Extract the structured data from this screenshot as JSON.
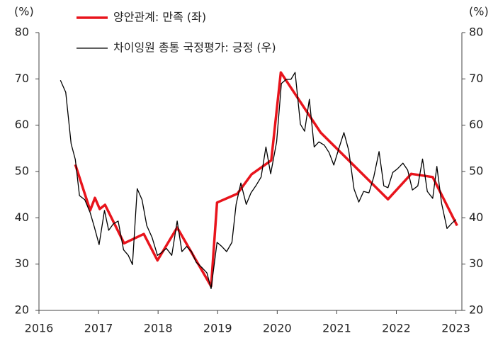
{
  "chart_data": {
    "type": "line",
    "y_unit_label": "(%)",
    "y2_unit_label": "(%)",
    "xlim": [
      2016,
      2023.1
    ],
    "xticks": [
      2016,
      2017,
      2018,
      2019,
      2020,
      2021,
      2022,
      2023
    ],
    "ylim": [
      20,
      80
    ],
    "yticks": [
      20,
      30,
      40,
      50,
      60,
      70,
      80
    ],
    "y2lim": [
      20,
      80
    ],
    "y2ticks": [
      20,
      30,
      40,
      50,
      60,
      70,
      80
    ],
    "series": [
      {
        "name": "양안관계: 만족 (좌)",
        "color": "#e8141c",
        "axis": "y",
        "x": [
          2016.61,
          2016.86,
          2016.94,
          2017.02,
          2017.11,
          2017.43,
          2017.76,
          2017.99,
          2018.32,
          2018.89,
          2018.99,
          2019.33,
          2019.57,
          2019.9,
          2020.06,
          2020.73,
          2021.86,
          2022.25,
          2022.61,
          2023.02
        ],
        "values": [
          51.5,
          41.6,
          44.3,
          41.9,
          42.8,
          34.5,
          36.5,
          30.8,
          37.9,
          25.2,
          43.3,
          45.2,
          49.4,
          52.4,
          71.4,
          58.4,
          44.0,
          49.5,
          48.8,
          38.3
        ]
      },
      {
        "name": "차이잉원 총통 국정평가: 긍정 (우)",
        "color": "#000000",
        "axis": "y2",
        "x": [
          2016.36,
          2016.45,
          2016.54,
          2016.61,
          2016.68,
          2016.77,
          2016.86,
          2016.93,
          2017.01,
          2017.1,
          2017.17,
          2017.25,
          2017.33,
          2017.42,
          2017.5,
          2017.57,
          2017.65,
          2017.73,
          2017.81,
          2017.9,
          2017.99,
          2018.06,
          2018.14,
          2018.23,
          2018.32,
          2018.4,
          2018.48,
          2018.56,
          2018.64,
          2018.74,
          2018.82,
          2018.89,
          2018.99,
          2019.07,
          2019.15,
          2019.24,
          2019.31,
          2019.39,
          2019.48,
          2019.56,
          2019.64,
          2019.73,
          2019.81,
          2019.89,
          2019.99,
          2020.07,
          2020.15,
          2020.23,
          2020.3,
          2020.39,
          2020.46,
          2020.54,
          2020.62,
          2020.7,
          2020.79,
          2020.87,
          2020.95,
          2021.04,
          2021.12,
          2021.2,
          2021.29,
          2021.37,
          2021.45,
          2021.54,
          2021.62,
          2021.71,
          2021.79,
          2021.86,
          2021.94,
          2022.02,
          2022.11,
          2022.19,
          2022.27,
          2022.36,
          2022.44,
          2022.52,
          2022.61,
          2022.68,
          2022.76,
          2022.85,
          2022.93,
          2023.0
        ],
        "values": [
          69.7,
          67.1,
          56,
          52.6,
          44.8,
          43.9,
          41.1,
          38,
          34.2,
          41.6,
          37.3,
          38.7,
          39.3,
          33.1,
          31.9,
          29.9,
          46.3,
          43.9,
          38.3,
          35.7,
          31.9,
          32.5,
          33.4,
          31.9,
          39.3,
          32.7,
          33.8,
          32.7,
          30.4,
          29.2,
          28.1,
          24.7,
          34.7,
          33.8,
          32.7,
          34.7,
          42.9,
          47.5,
          42.9,
          45.4,
          46.9,
          48.8,
          55.3,
          49.5,
          56.4,
          69,
          69.9,
          69.9,
          71.4,
          60.2,
          58.7,
          65.6,
          55.3,
          56.4,
          55.7,
          54.1,
          51.4,
          55.2,
          58.4,
          54.6,
          46.2,
          43.4,
          45.7,
          45.4,
          48.8,
          54.3,
          46.9,
          46.5,
          49.8,
          50.6,
          51.8,
          50.3,
          46,
          46.9,
          52.7,
          45.7,
          44.2,
          51.1,
          43.1,
          37.7,
          38.8,
          39.6
        ]
      }
    ]
  }
}
